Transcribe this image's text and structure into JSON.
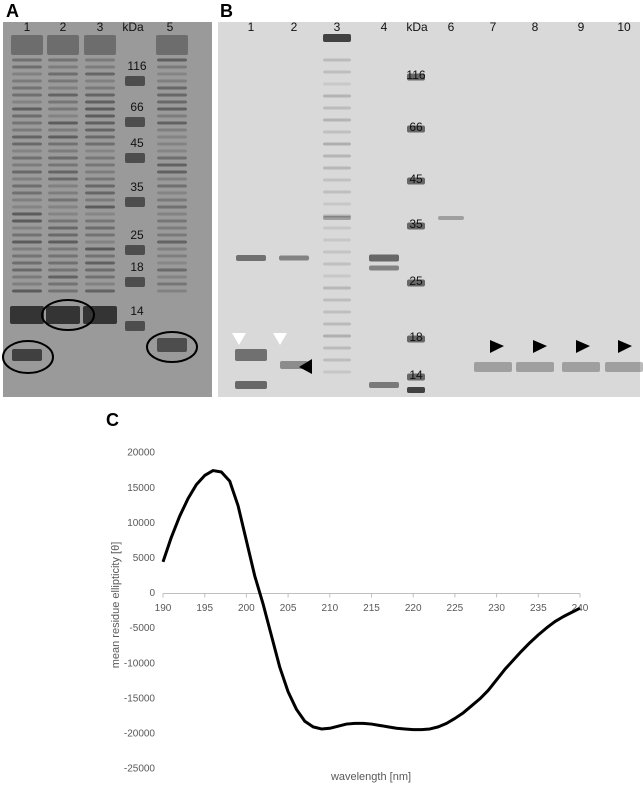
{
  "panel_a": {
    "label": "A",
    "lanes": [
      "1",
      "2",
      "3",
      "kDa",
      "5"
    ],
    "markers": [
      "116",
      "66",
      "45",
      "35",
      "25",
      "18",
      "14"
    ]
  },
  "panel_b": {
    "label": "B",
    "lanes": [
      "1",
      "2",
      "3",
      "4",
      "kDa",
      "6",
      "7",
      "8",
      "9",
      "10"
    ],
    "markers": [
      "116",
      "66",
      "45",
      "35",
      "25",
      "18",
      "14"
    ]
  },
  "chart_data": {
    "type": "line",
    "label": "C",
    "xlabel": "wavelength [nm]",
    "ylabel": "mean residue ellipticity [θ]",
    "color": "#000000",
    "x": [
      190,
      191,
      192,
      193,
      194,
      195,
      196,
      197,
      198,
      199,
      200,
      201,
      202,
      203,
      204,
      205,
      206,
      207,
      208,
      209,
      210,
      211,
      212,
      213,
      214,
      215,
      216,
      217,
      218,
      219,
      220,
      221,
      222,
      223,
      224,
      225,
      226,
      227,
      228,
      229,
      230,
      231,
      232,
      233,
      234,
      235,
      236,
      237,
      238,
      239,
      240
    ],
    "values": [
      4500,
      8000,
      11000,
      13500,
      15500,
      16800,
      17500,
      17300,
      16000,
      12500,
      7500,
      2500,
      -1500,
      -6000,
      -10500,
      -14000,
      -16500,
      -18200,
      -19000,
      -19300,
      -19200,
      -18900,
      -18600,
      -18500,
      -18500,
      -18600,
      -18800,
      -19000,
      -19200,
      -19300,
      -19400,
      -19400,
      -19300,
      -19000,
      -18500,
      -17800,
      -17000,
      -16000,
      -15000,
      -13800,
      -12300,
      -10800,
      -9500,
      -8200,
      -7000,
      -5900,
      -4900,
      -4000,
      -3300,
      -2700,
      -2100
    ],
    "xlim": [
      190,
      240
    ],
    "ylim": [
      -25000,
      20000
    ],
    "xticks": [
      190,
      195,
      200,
      205,
      210,
      215,
      220,
      225,
      230,
      235,
      240
    ],
    "yticks": [
      -25000,
      -20000,
      -15000,
      -10000,
      -5000,
      0,
      5000,
      10000,
      15000,
      20000
    ]
  }
}
